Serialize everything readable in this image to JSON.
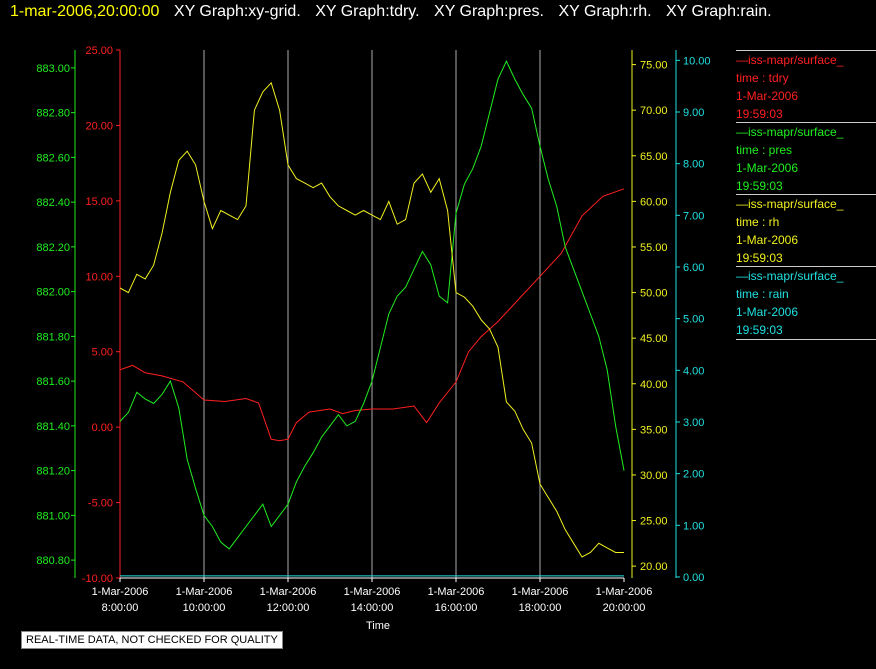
{
  "header": {
    "timestamp": "1-mar-2006,20:00:00",
    "graphs": [
      "XY Graph:xy-grid.",
      "XY Graph:tdry.",
      "XY Graph:pres.",
      "XY Graph:rh.",
      "XY Graph:rain."
    ]
  },
  "notice": "REAL-TIME DATA, NOT CHECKED FOR QUALITY",
  "legend": [
    {
      "name": "—iss-mapr/surface_",
      "field": "time : tdry",
      "date": "1-Mar-2006",
      "time": "19:59:03",
      "color": "#ff2020"
    },
    {
      "name": "—iss-mapr/surface_",
      "field": "time : pres",
      "date": "1-Mar-2006",
      "time": "19:59:03",
      "color": "#20ee20"
    },
    {
      "name": "—iss-mapr/surface_",
      "field": "time : rh",
      "date": "1-Mar-2006",
      "time": "19:59:03",
      "color": "#f0f020"
    },
    {
      "name": "—iss-mapr/surface_",
      "field": "time : rain",
      "date": "1-Mar-2006",
      "time": "19:59:03",
      "color": "#20e0e0"
    }
  ],
  "colors": {
    "tdry": "#ff2020",
    "pres": "#20ee20",
    "rh": "#f0f020",
    "rain": "#20e0e0",
    "grid": "#aaaaaa",
    "axis_text": "#ffffff"
  },
  "chart_data": {
    "type": "line",
    "xlabel": "Time",
    "x_ticks": [
      {
        "date": "1-Mar-2006",
        "time": "8:00:00",
        "h": 8
      },
      {
        "date": "1-Mar-2006",
        "time": "10:00:00",
        "h": 10
      },
      {
        "date": "1-Mar-2006",
        "time": "12:00:00",
        "h": 12
      },
      {
        "date": "1-Mar-2006",
        "time": "14:00:00",
        "h": 14
      },
      {
        "date": "1-Mar-2006",
        "time": "16:00:00",
        "h": 16
      },
      {
        "date": "1-Mar-2006",
        "time": "18:00:00",
        "h": 18
      },
      {
        "date": "1-Mar-2006",
        "time": "20:00:00",
        "h": 20
      }
    ],
    "xlim_hours": [
      8,
      20
    ],
    "grid": "vertical",
    "axes": {
      "pres": {
        "ticks": [
          "880.80",
          "881.00",
          "881.20",
          "881.40",
          "881.60",
          "881.80",
          "882.00",
          "882.20",
          "882.40",
          "882.60",
          "882.80",
          "883.00"
        ],
        "ylim": [
          880.72,
          883.08
        ]
      },
      "tdry": {
        "ticks": [
          "-10.00",
          "-5.00",
          "0.00",
          "5.00",
          "10.00",
          "15.00",
          "20.00",
          "25.00"
        ],
        "ylim": [
          -10,
          25
        ]
      },
      "rh": {
        "ticks": [
          "20.00",
          "25.00",
          "30.00",
          "35.00",
          "40.00",
          "45.00",
          "50.00",
          "55.00",
          "60.00",
          "65.00",
          "70.00",
          "75.00"
        ],
        "ylim": [
          18.7,
          76.6
        ]
      },
      "rain": {
        "ticks": [
          "0.00",
          "1.00",
          "2.00",
          "3.00",
          "4.00",
          "5.00",
          "6.00",
          "7.00",
          "8.00",
          "9.00",
          "10.00"
        ],
        "ylim": [
          -0.02,
          10.2
        ]
      }
    },
    "series": [
      {
        "name": "tdry",
        "x": [
          8,
          8.3,
          8.6,
          9,
          9.5,
          10,
          10.5,
          11,
          11.3,
          11.6,
          11.8,
          12,
          12.2,
          12.5,
          13,
          13.3,
          13.6,
          14,
          14.5,
          15,
          15.3,
          15.6,
          16,
          16.3,
          16.6,
          17,
          17.5,
          18,
          18.5,
          19,
          19.5,
          20
        ],
        "y": [
          3.8,
          4.1,
          3.6,
          3.4,
          3.0,
          1.8,
          1.7,
          1.9,
          1.6,
          -0.8,
          -0.9,
          -0.8,
          0.3,
          1.0,
          1.2,
          0.9,
          1.1,
          1.2,
          1.2,
          1.4,
          0.3,
          1.6,
          3.0,
          5.0,
          6.0,
          7.0,
          8.5,
          10.0,
          11.5,
          14.0,
          15.3,
          15.8
        ]
      },
      {
        "name": "pres",
        "x": [
          8,
          8.2,
          8.4,
          8.6,
          8.8,
          9,
          9.2,
          9.4,
          9.6,
          9.8,
          10,
          10.2,
          10.4,
          10.6,
          10.8,
          11,
          11.2,
          11.4,
          11.6,
          11.8,
          12,
          12.2,
          12.4,
          12.6,
          12.8,
          13,
          13.2,
          13.4,
          13.6,
          13.8,
          14,
          14.2,
          14.4,
          14.6,
          14.8,
          15,
          15.2,
          15.4,
          15.6,
          15.8,
          16,
          16.2,
          16.4,
          16.6,
          16.8,
          17,
          17.2,
          17.4,
          17.6,
          17.8,
          18,
          18.2,
          18.4,
          18.6,
          18.8,
          19,
          19.2,
          19.4,
          19.6,
          19.8,
          20
        ],
        "y": [
          881.42,
          881.46,
          881.55,
          881.52,
          881.5,
          881.54,
          881.6,
          881.48,
          881.25,
          881.12,
          881.0,
          880.95,
          880.88,
          880.85,
          880.9,
          880.95,
          881.0,
          881.05,
          880.95,
          881.0,
          881.05,
          881.15,
          881.22,
          881.28,
          881.35,
          881.4,
          881.45,
          881.4,
          881.42,
          881.5,
          881.6,
          881.75,
          881.9,
          881.98,
          882.02,
          882.1,
          882.18,
          882.12,
          881.98,
          881.95,
          882.35,
          882.48,
          882.55,
          882.65,
          882.8,
          882.95,
          883.03,
          882.95,
          882.88,
          882.82,
          882.65,
          882.5,
          882.38,
          882.2,
          882.1,
          882.0,
          881.9,
          881.8,
          881.65,
          881.4,
          881.2
        ]
      },
      {
        "name": "rh",
        "x": [
          8,
          8.2,
          8.4,
          8.6,
          8.8,
          9,
          9.2,
          9.4,
          9.6,
          9.8,
          10,
          10.2,
          10.4,
          10.6,
          10.8,
          11,
          11.2,
          11.4,
          11.6,
          11.8,
          12,
          12.2,
          12.4,
          12.6,
          12.8,
          13,
          13.2,
          13.4,
          13.6,
          13.8,
          14,
          14.2,
          14.4,
          14.6,
          14.8,
          15,
          15.2,
          15.4,
          15.6,
          15.8,
          16,
          16.2,
          16.4,
          16.6,
          16.8,
          17,
          17.2,
          17.4,
          17.6,
          17.8,
          18,
          18.2,
          18.4,
          18.6,
          18.8,
          19,
          19.2,
          19.4,
          19.6,
          19.8,
          20
        ],
        "y": [
          50.5,
          50.0,
          52.0,
          51.5,
          53.0,
          56.5,
          61.0,
          64.5,
          65.5,
          64.0,
          60.0,
          57.0,
          59.0,
          58.5,
          58.0,
          59.5,
          70.0,
          72.0,
          73.0,
          70.0,
          64.0,
          62.5,
          62.0,
          61.5,
          62.0,
          60.5,
          59.5,
          59.0,
          58.5,
          59.0,
          58.5,
          58.0,
          60.0,
          57.5,
          58.0,
          62.0,
          63.0,
          61.0,
          62.5,
          59.0,
          50.0,
          49.5,
          48.5,
          47.0,
          46.0,
          44.0,
          38.0,
          37.0,
          35.0,
          33.5,
          29.0,
          27.5,
          26.0,
          24.0,
          22.5,
          21.0,
          21.5,
          22.5,
          22.0,
          21.5,
          21.5
        ]
      },
      {
        "name": "rain",
        "x": [
          8,
          20
        ],
        "y": [
          0.02,
          0.02
        ]
      }
    ]
  }
}
